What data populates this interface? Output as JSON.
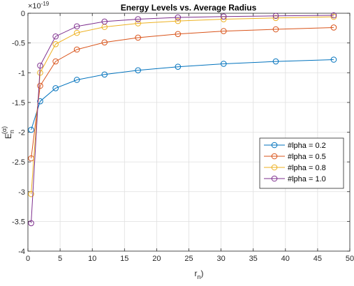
{
  "chart_data": {
    "type": "line",
    "title": "Energy Levels vs. Average Radius",
    "xlabel_main": "r",
    "xlabel_sub": "n",
    "xlabel_suffix": ")",
    "ylabel_main": "E",
    "ylabel_sub": "n",
    "ylabel_sup": "(α)",
    "y_exponent_base": "×10",
    "y_exponent_power": "-19",
    "xlim": [
      0,
      50
    ],
    "ylim": [
      -4,
      0
    ],
    "xticks": [
      0,
      5,
      10,
      15,
      20,
      25,
      30,
      35,
      40,
      45,
      50
    ],
    "yticks": [
      0,
      -0.5,
      -1,
      -1.5,
      -2,
      -2.5,
      -3,
      -3.5,
      -4
    ],
    "ytick_labels": [
      "0",
      "-0.5",
      "-1",
      "-1.5",
      "-2",
      "-2.5",
      "-3",
      "-3.5",
      "-4"
    ],
    "grid": true,
    "legend_position": "right",
    "series": [
      {
        "name": "#lpha = 0.2",
        "color": "#0072BD",
        "points": [
          [
            0.5,
            -1.96
          ],
          [
            1.9,
            -1.48
          ],
          [
            4.3,
            -1.26
          ],
          [
            7.6,
            -1.12
          ],
          [
            11.9,
            -1.03
          ],
          [
            17.1,
            -0.96
          ],
          [
            23.3,
            -0.9
          ],
          [
            30.4,
            -0.85
          ],
          [
            38.5,
            -0.81
          ],
          [
            47.5,
            -0.78
          ]
        ]
      },
      {
        "name": "#lpha = 0.5",
        "color": "#D95319",
        "points": [
          [
            0.5,
            -2.44
          ],
          [
            1.9,
            -1.22
          ],
          [
            4.3,
            -0.81
          ],
          [
            7.6,
            -0.61
          ],
          [
            11.9,
            -0.49
          ],
          [
            17.1,
            -0.41
          ],
          [
            23.3,
            -0.35
          ],
          [
            30.4,
            -0.3
          ],
          [
            38.5,
            -0.27
          ],
          [
            47.5,
            -0.24
          ]
        ]
      },
      {
        "name": "#lpha = 0.8",
        "color": "#EDB120",
        "points": [
          [
            0.5,
            -3.04
          ],
          [
            1.9,
            -1.0
          ],
          [
            4.3,
            -0.52
          ],
          [
            7.6,
            -0.33
          ],
          [
            11.9,
            -0.23
          ],
          [
            17.1,
            -0.17
          ],
          [
            23.3,
            -0.13
          ],
          [
            30.4,
            -0.1
          ],
          [
            38.5,
            -0.08
          ],
          [
            47.5,
            -0.06
          ]
        ]
      },
      {
        "name": "#lpha = 1.0",
        "color": "#7E2F8E",
        "points": [
          [
            0.5,
            -3.53
          ],
          [
            1.9,
            -0.88
          ],
          [
            4.3,
            -0.39
          ],
          [
            7.6,
            -0.22
          ],
          [
            11.9,
            -0.14
          ],
          [
            17.1,
            -0.1
          ],
          [
            23.3,
            -0.07
          ],
          [
            30.4,
            -0.055
          ],
          [
            38.5,
            -0.044
          ],
          [
            47.5,
            -0.035
          ]
        ]
      }
    ]
  }
}
